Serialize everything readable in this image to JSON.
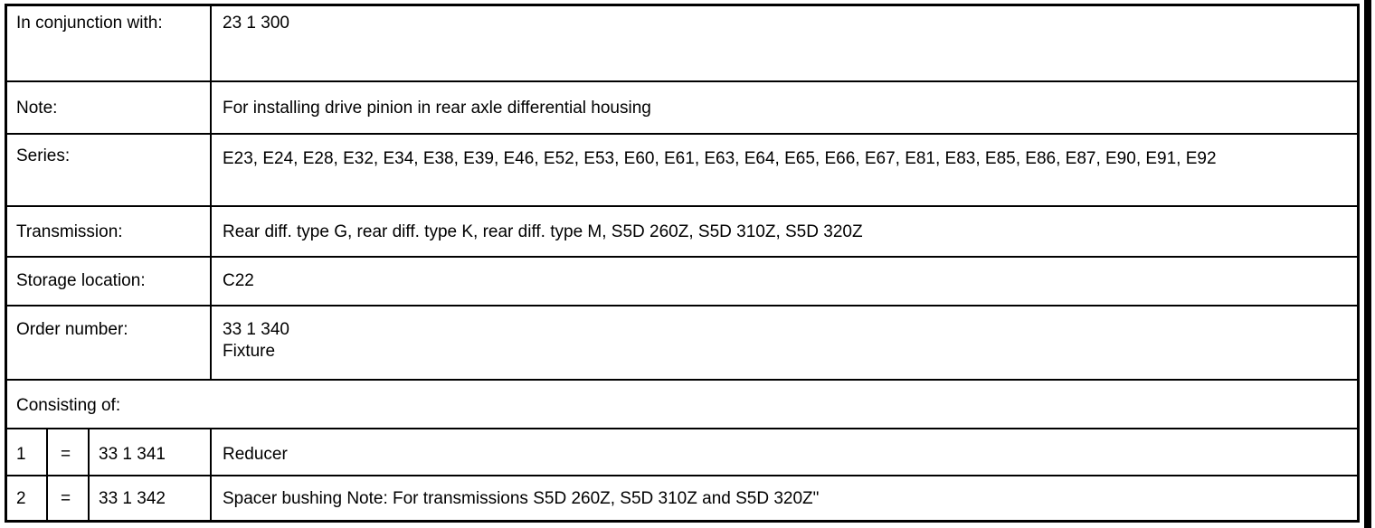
{
  "rows": [
    {
      "label": "In conjunction with:",
      "value": "23 1 300"
    },
    {
      "label": "Note:",
      "value": "For installing drive pinion in rear axle differential housing"
    },
    {
      "label": "Series:",
      "value": "E23, E24, E28, E32, E34, E38, E39, E46, E52, E53, E60, E61, E63, E64, E65, E66, E67, E81, E83, E85, E86, E87, E90, E91, E92"
    },
    {
      "label": "Transmission:",
      "value": "Rear diff. type G, rear diff. type K, rear diff. type M, S5D 260Z, S5D 310Z, S5D 320Z"
    },
    {
      "label": "Storage location:",
      "value": "C22"
    },
    {
      "label": "Order number:",
      "value": "33 1 340",
      "value2": "Fixture"
    }
  ],
  "consisting_label": "Consisting of:",
  "parts": [
    {
      "index": "1",
      "eq": "=",
      "number": "33 1 341",
      "desc": "Reducer"
    },
    {
      "index": "2",
      "eq": "=",
      "number": "33 1 342",
      "desc": "Spacer bushing Note: For transmissions S5D 260Z, S5D 310Z and S5D 320Z\""
    }
  ]
}
